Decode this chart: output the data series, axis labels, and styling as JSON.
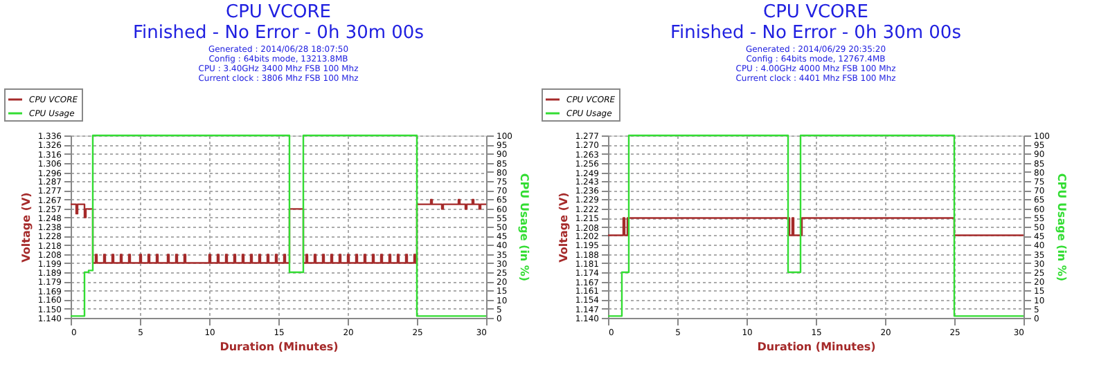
{
  "chart_data": [
    {
      "type": "step",
      "title": "CPU VCORE",
      "subtitle": "Finished - No Error - 0h 30m 00s",
      "annotations": [
        "Generated : 2014/06/28 18:07:50",
        "Config : 64bits mode, 13213.8MB",
        "CPU : 3.40GHz 3400 Mhz FSB 100 Mhz",
        "Current clock : 3806 Mhz FSB 100 Mhz"
      ],
      "xlabel": "Duration (Minutes)",
      "ylabel": "Voltage (V)",
      "y2label": "CPU Usage (in %)",
      "xlim": [
        0,
        30
      ],
      "xticks": [
        0,
        5,
        10,
        15,
        20,
        25,
        30
      ],
      "ylim": [
        1.14,
        1.336
      ],
      "yticks": [
        {
          "value": 1.14,
          "label": "1.140"
        },
        {
          "value": 1.15,
          "label": "1.150"
        },
        {
          "value": 1.16,
          "label": "1.160"
        },
        1.169,
        1.179,
        1.189,
        1.199,
        1.208,
        1.218,
        1.228,
        1.238,
        1.248,
        1.257,
        1.267,
        1.277,
        1.287,
        1.296,
        1.306,
        1.316,
        1.326,
        1.336
      ],
      "y2lim": [
        0,
        100
      ],
      "y2ticks": [
        0,
        5,
        10,
        15,
        20,
        25,
        30,
        35,
        40,
        45,
        50,
        55,
        60,
        65,
        70,
        75,
        80,
        85,
        90,
        95,
        100
      ],
      "grid": true,
      "legend": "top left",
      "series": [
        {
          "name": "CPU VCORE",
          "color": "#a52a2a",
          "x": [
            0,
            0.4,
            0.5,
            1.0,
            1.1,
            1.6,
            1.8,
            1.9,
            2.4,
            2.5,
            3.0,
            3.1,
            3.6,
            3.7,
            4.2,
            4.3,
            5.0,
            5.1,
            5.6,
            5.7,
            6.2,
            6.3,
            7.0,
            7.1,
            7.6,
            7.7,
            8.2,
            8.3,
            10.0,
            10.1,
            10.6,
            10.7,
            11.2,
            11.3,
            11.8,
            11.9,
            12.4,
            12.5,
            13.0,
            13.1,
            13.6,
            13.7,
            14.2,
            14.3,
            14.8,
            14.9,
            15.4,
            15.5,
            15.8,
            16.8,
            17.0,
            17.1,
            17.6,
            17.7,
            18.2,
            18.3,
            18.8,
            18.9,
            19.4,
            19.5,
            20.0,
            20.1,
            20.6,
            20.7,
            21.2,
            21.3,
            21.8,
            21.9,
            22.4,
            22.5,
            23.0,
            23.1,
            23.6,
            23.7,
            24.2,
            24.3,
            24.8,
            24.9,
            25.0,
            26.0,
            26.1,
            26.8,
            26.9,
            28.0,
            28.1,
            28.5,
            28.6,
            29.0,
            29.1,
            29.5,
            29.6,
            30
          ],
          "values": [
            1.262,
            1.252,
            1.262,
            1.248,
            1.257,
            1.199,
            1.208,
            1.199,
            1.208,
            1.199,
            1.208,
            1.199,
            1.208,
            1.199,
            1.208,
            1.199,
            1.208,
            1.199,
            1.208,
            1.199,
            1.208,
            1.199,
            1.208,
            1.199,
            1.208,
            1.199,
            1.208,
            1.199,
            1.208,
            1.199,
            1.208,
            1.199,
            1.208,
            1.199,
            1.208,
            1.199,
            1.208,
            1.199,
            1.208,
            1.199,
            1.208,
            1.199,
            1.208,
            1.199,
            1.208,
            1.199,
            1.208,
            1.199,
            1.257,
            1.199,
            1.208,
            1.199,
            1.208,
            1.199,
            1.208,
            1.199,
            1.208,
            1.199,
            1.208,
            1.199,
            1.208,
            1.199,
            1.208,
            1.199,
            1.208,
            1.199,
            1.208,
            1.199,
            1.208,
            1.199,
            1.208,
            1.199,
            1.208,
            1.199,
            1.208,
            1.199,
            1.208,
            1.199,
            1.262,
            1.267,
            1.262,
            1.257,
            1.262,
            1.267,
            1.262,
            1.257,
            1.262,
            1.267,
            1.262,
            1.257,
            1.262,
            1.262
          ]
        },
        {
          "name": "CPU Usage",
          "color": "#33dd33",
          "axis": "y2",
          "x": [
            0,
            1.0,
            1.3,
            1.6,
            15.8,
            16.8,
            25.0,
            30
          ],
          "values": [
            1,
            25,
            26,
            100,
            25,
            100,
            1,
            1
          ]
        }
      ]
    },
    {
      "type": "step",
      "title": "CPU VCORE",
      "subtitle": "Finished - No Error - 0h 30m 00s",
      "annotations": [
        "Generated : 2014/06/29 20:35:20",
        "Config : 64bits mode, 12767.4MB",
        "CPU : 4.00GHz 4000 Mhz FSB 100 Mhz",
        "Current clock : 4401 Mhz FSB 100 Mhz"
      ],
      "xlabel": "Duration (Minutes)",
      "ylabel": "Voltage (V)",
      "y2label": "CPU Usage (in %)",
      "xlim": [
        0,
        30
      ],
      "xticks": [
        0,
        5,
        10,
        15,
        20,
        25,
        30
      ],
      "ylim": [
        1.14,
        1.277
      ],
      "yticks": [
        {
          "value": 1.14,
          "label": "1.140"
        },
        1.147,
        1.154,
        1.161,
        1.167,
        1.174,
        1.181,
        1.188,
        1.195,
        1.202,
        1.208,
        1.215,
        1.222,
        1.229,
        1.236,
        1.243,
        1.249,
        1.256,
        1.263,
        {
          "value": 1.27,
          "label": "1.270"
        },
        1.277
      ],
      "y2lim": [
        0,
        100
      ],
      "y2ticks": [
        0,
        5,
        10,
        15,
        20,
        25,
        30,
        35,
        40,
        45,
        50,
        55,
        60,
        65,
        70,
        75,
        80,
        85,
        90,
        95,
        100
      ],
      "grid": true,
      "legend": "top left",
      "series": [
        {
          "name": "CPU VCORE",
          "color": "#a52a2a",
          "x": [
            0,
            1.1,
            1.2,
            1.4,
            13.1,
            13.3,
            13.4,
            14.0,
            25.0,
            30
          ],
          "values": [
            1.202,
            1.215,
            1.202,
            1.215,
            1.202,
            1.215,
            1.202,
            1.215,
            1.202,
            1.202
          ]
        },
        {
          "name": "CPU Usage",
          "color": "#33dd33",
          "axis": "y2",
          "x": [
            0,
            1.0,
            1.5,
            13.0,
            13.9,
            25.0,
            30
          ],
          "values": [
            1,
            25,
            100,
            25,
            100,
            1,
            1
          ]
        }
      ]
    }
  ]
}
